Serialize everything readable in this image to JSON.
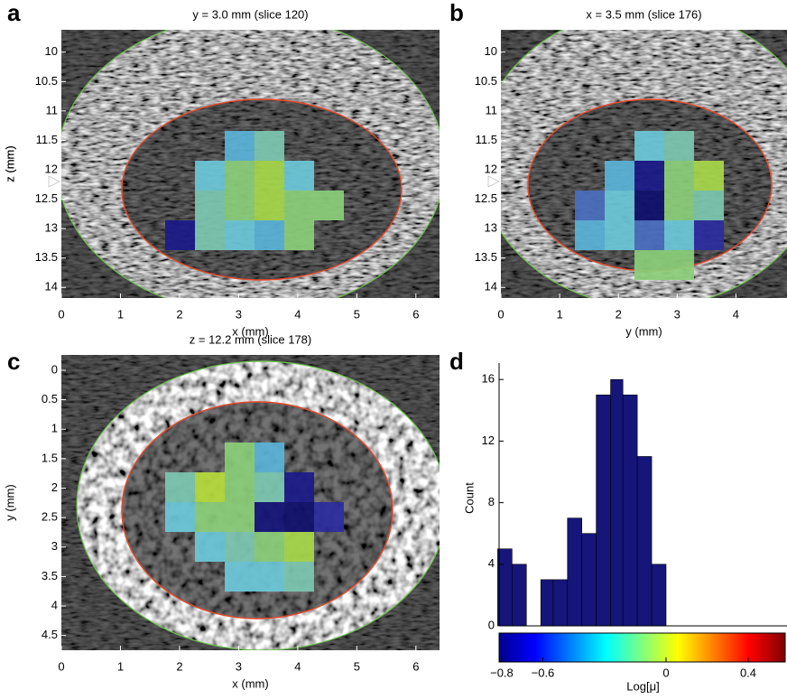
{
  "chart_data": [
    {
      "type": "image",
      "panel_label": "a",
      "title": "y = 3.0 mm (slice 120)",
      "xlabel": "x (mm)",
      "ylabel": "z (mm)",
      "xlim": [
        0,
        6.4
      ],
      "xticks": [
        0,
        1,
        2,
        3,
        4,
        5,
        6
      ],
      "ylim": [
        9.62,
        14.18
      ],
      "y_reversed": true,
      "yticks": [
        10,
        10.5,
        11,
        11.5,
        12,
        12.5,
        13,
        13.5,
        14
      ]
    },
    {
      "type": "image",
      "panel_label": "b",
      "title": "x = 3.5 mm (slice 176)",
      "xlabel": "y (mm)",
      "ylabel": "z (mm)",
      "xlim": [
        0,
        4.87
      ],
      "xticks": [
        0,
        1,
        2,
        3,
        4
      ],
      "ylim": [
        9.62,
        14.18
      ],
      "y_reversed": true,
      "yticks": [
        10,
        10.5,
        11,
        11.5,
        12,
        12.5,
        13,
        13.5,
        14
      ]
    },
    {
      "type": "image",
      "panel_label": "c",
      "title": "z = 12.2 mm (slice 178)",
      "xlabel": "x (mm)",
      "ylabel": "y (mm)",
      "xlim": [
        0,
        6.4
      ],
      "xticks": [
        0,
        1,
        2,
        3,
        4,
        5,
        6
      ],
      "ylim": [
        -0.26,
        4.75
      ],
      "y_reversed": true,
      "yticks": [
        0,
        0.5,
        1,
        1.5,
        2,
        2.5,
        3,
        3.5,
        4,
        4.5
      ]
    },
    {
      "type": "histogram",
      "panel_label": "d",
      "xlabel": "Log[μ]",
      "ylabel": "Count",
      "color": "#15157a",
      "colormap": "jet",
      "bins": [
        -0.82,
        -0.75,
        -0.68,
        -0.61,
        -0.55,
        -0.48,
        -0.41,
        -0.34,
        -0.27,
        -0.21,
        -0.14,
        -0.07,
        0.0
      ],
      "counts": [
        5,
        4,
        0,
        3,
        3,
        7,
        6,
        15,
        16,
        15,
        11,
        4
      ],
      "xlim": [
        -0.813,
        0.589
      ],
      "xticks": [
        {
          "value": -0.8,
          "label": "−0.8"
        },
        {
          "value": -0.6,
          "label": "−0.6"
        },
        0,
        0.4
      ],
      "ylim": [
        0,
        16.6
      ],
      "yticks": [
        0,
        4,
        8,
        12,
        16
      ]
    }
  ]
}
